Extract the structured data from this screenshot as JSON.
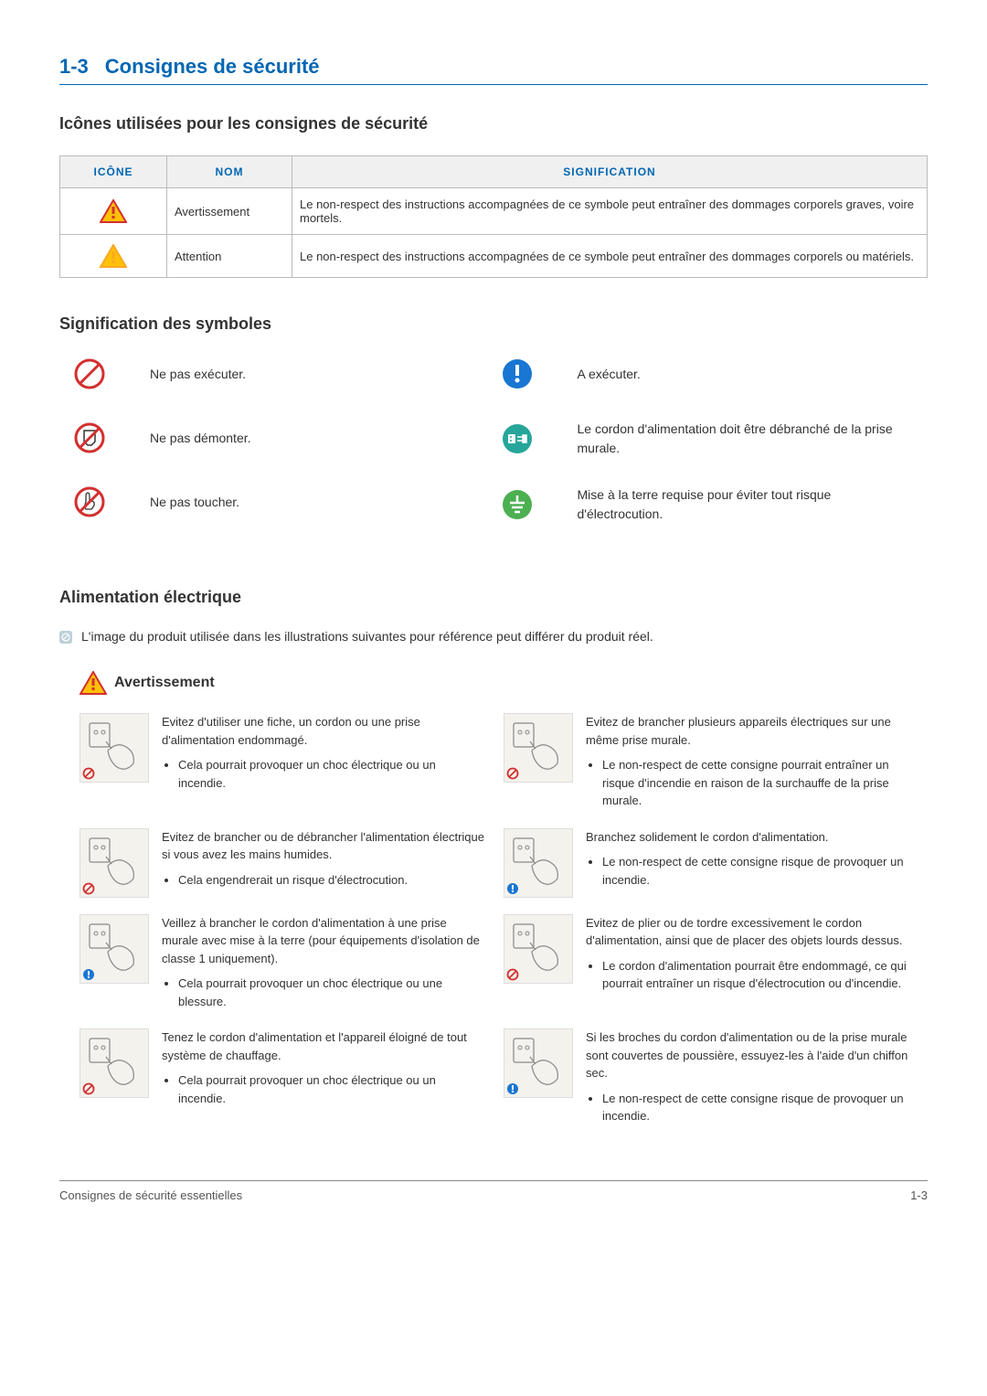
{
  "section": {
    "number": "1-3",
    "title": "Consignes de sécurité"
  },
  "icons_heading": "Icônes utilisées pour les consignes de sécurité",
  "icon_table": {
    "headers": {
      "icon": "ICÔNE",
      "name": "NOM",
      "meaning": "SIGNIFICATION"
    },
    "rows": [
      {
        "name": "Avertissement",
        "meaning": "Le non-respect des instructions accompagnées de ce symbole peut entraîner des dommages corporels graves, voire mortels.",
        "color": "#d32f2f"
      },
      {
        "name": "Attention",
        "meaning": "Le non-respect des instructions accompagnées de ce symbole peut entraîner des dommages corporels ou matériels.",
        "color": "#f9a825"
      }
    ]
  },
  "symbols_heading": "Signification des symboles",
  "symbols": {
    "left": [
      {
        "icon": "prohibit",
        "text": "Ne pas exécuter."
      },
      {
        "icon": "no-disassemble",
        "text": "Ne pas démonter."
      },
      {
        "icon": "no-touch",
        "text": "Ne pas toucher."
      }
    ],
    "right": [
      {
        "icon": "must-do",
        "text": "A exécuter."
      },
      {
        "icon": "unplug",
        "text": "Le cordon d'alimentation doit être débranché de la prise murale."
      },
      {
        "icon": "ground",
        "text": "Mise à la terre requise pour éviter tout risque d'électrocution."
      }
    ]
  },
  "power_heading": "Alimentation électrique",
  "note": "L'image du produit utilisée dans les illustrations suivantes pour référence peut différer du produit réel.",
  "warning_label": "Avertissement",
  "warning_color": "#d32f2f",
  "safety": [
    {
      "badge": "prohibit",
      "main": "Evitez d'utiliser une fiche, un cordon ou une prise d'alimentation endommagé.",
      "bullets": [
        "Cela pourrait provoquer un choc électrique ou un incendie."
      ]
    },
    {
      "badge": "prohibit",
      "main": "Evitez de brancher plusieurs appareils électriques sur une même prise murale.",
      "bullets": [
        "Le non-respect de cette consigne pourrait entraîner un risque d'incendie en raison de la surchauffe de la prise murale."
      ]
    },
    {
      "badge": "prohibit",
      "main": "Evitez de brancher ou de débrancher l'alimentation électrique si vous avez les mains humides.",
      "bullets": [
        "Cela engendrerait un risque d'électrocution."
      ]
    },
    {
      "badge": "must-do",
      "main": "Branchez solidement le cordon d'alimentation.",
      "bullets": [
        "Le non-respect de cette consigne risque de provoquer un incendie."
      ]
    },
    {
      "badge": "must-do",
      "main": "Veillez à brancher le cordon d'alimentation à une prise murale avec mise à la terre (pour équipements d'isolation de classe 1 uniquement).",
      "bullets": [
        "Cela pourrait provoquer un choc électrique ou une blessure."
      ]
    },
    {
      "badge": "prohibit",
      "main": "Evitez de plier ou de tordre excessivement le cordon d'alimentation, ainsi que de placer des objets lourds dessus.",
      "bullets": [
        "Le cordon d'alimentation pourrait être endommagé, ce qui pourrait entraîner un risque d'électrocution ou d'incendie."
      ]
    },
    {
      "badge": "prohibit",
      "main": "Tenez le cordon d'alimentation et l'appareil éloigné de tout système de chauffage.",
      "bullets": [
        "Cela pourrait provoquer un choc électrique ou un incendie."
      ]
    },
    {
      "badge": "must-do",
      "main": "Si les broches du cordon d'alimentation ou de la prise murale sont couvertes de poussière, essuyez-les à l'aide d'un chiffon sec.",
      "bullets": [
        "Le non-respect de cette consigne risque de provoquer un incendie."
      ]
    }
  ],
  "colors": {
    "prohibit": "#d32f2f",
    "mustdo": "#1976d2",
    "unplug": "#26a69a",
    "ground": "#4caf50",
    "triangle_fill": "#ffc107"
  },
  "footer": {
    "left": "Consignes de sécurité essentielles",
    "right": "1-3"
  }
}
